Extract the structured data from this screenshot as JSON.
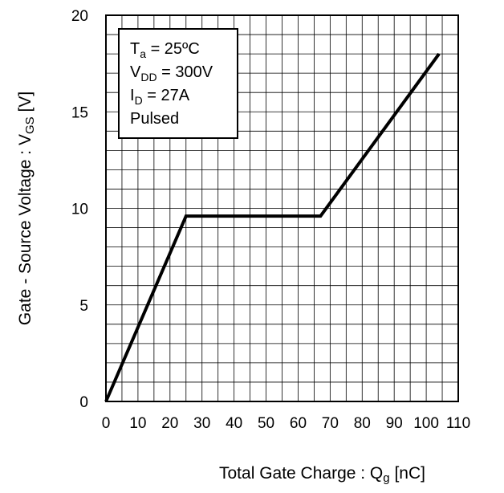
{
  "chart_data": {
    "type": "line",
    "title": "",
    "xlabel": {
      "main": "Total Gate Charge : Q",
      "sub": "g",
      "unit": " [nC]"
    },
    "ylabel": {
      "main": "Gate - Source Voltage : V",
      "sub": "GS",
      "unit": " [V]"
    },
    "xlim": [
      0,
      110
    ],
    "ylim": [
      0,
      20
    ],
    "x_ticks": [
      "0",
      "10",
      "20",
      "30",
      "40",
      "50",
      "60",
      "70",
      "80",
      "90",
      "100",
      "110"
    ],
    "y_ticks": [
      "0",
      "5",
      "10",
      "15",
      "20"
    ],
    "grid": true,
    "series": [
      {
        "x": [
          0,
          25,
          67,
          104
        ],
        "y": [
          0,
          9.6,
          9.6,
          18
        ]
      }
    ],
    "conditions": [
      {
        "main": "T",
        "sub": "a",
        "rest": " = 25ºC"
      },
      {
        "main": "V",
        "sub": "DD",
        "rest": " = 300V"
      },
      {
        "main": "I",
        "sub": "D",
        "rest": " = 27A"
      },
      {
        "main": "Pulsed",
        "sub": "",
        "rest": ""
      }
    ]
  }
}
